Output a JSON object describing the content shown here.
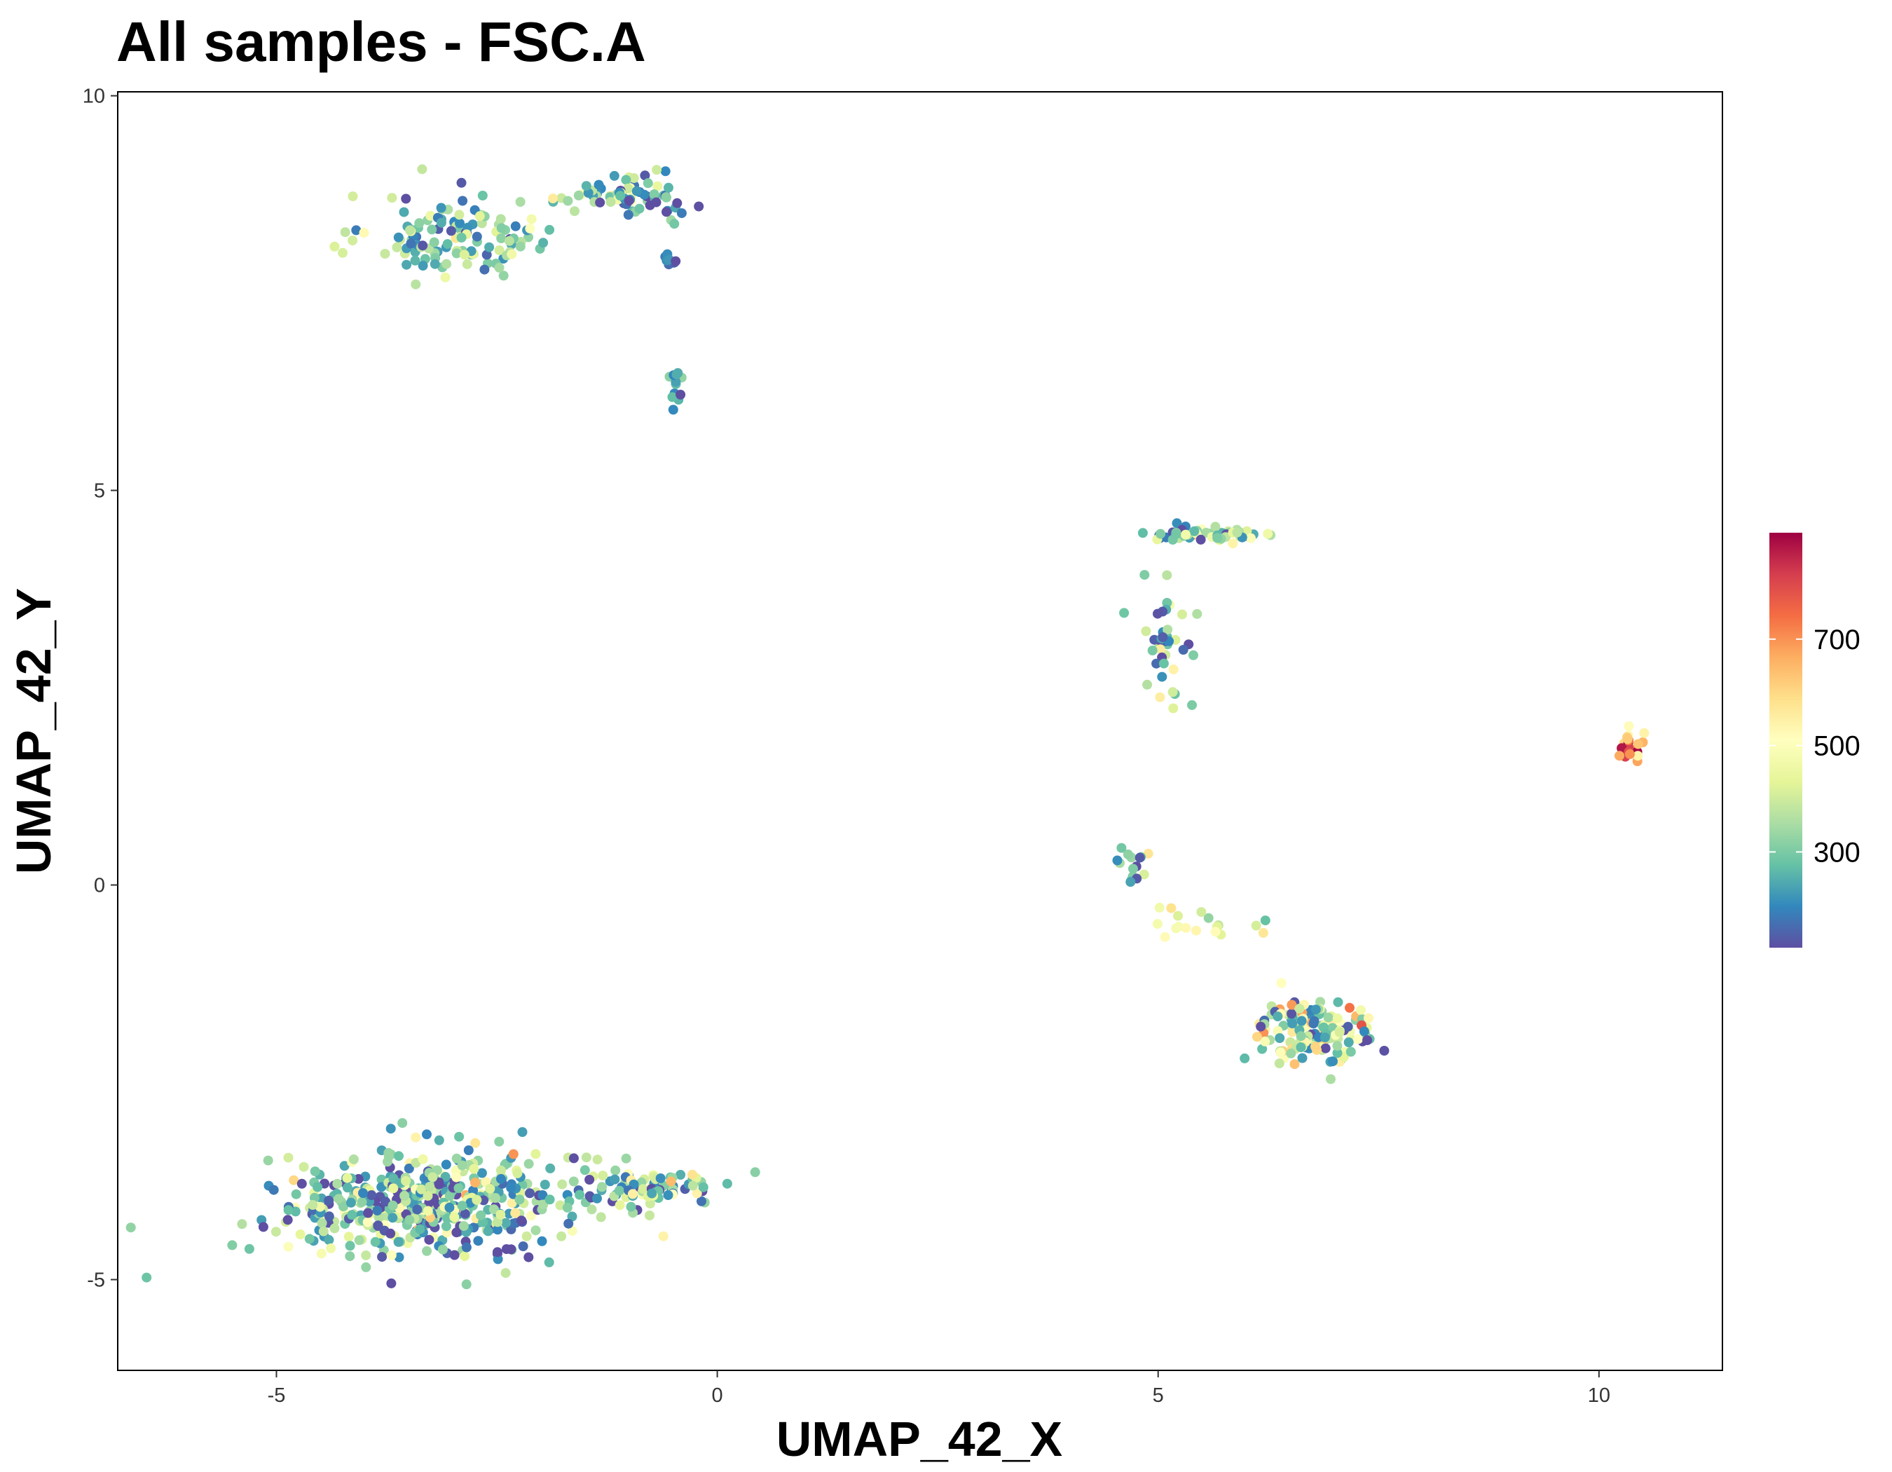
{
  "title": "All samples - FSC.A",
  "chart_data": {
    "type": "scatter",
    "title": "All samples - FSC.A",
    "xlabel": "UMAP_42_X",
    "ylabel": "UMAP_42_Y",
    "xlim": [
      -6.8,
      11.4
    ],
    "ylim": [
      -6.15,
      10.05
    ],
    "x_ticks": [
      -5,
      0,
      5,
      10
    ],
    "y_ticks": [
      -5,
      0,
      5,
      10
    ],
    "x_tick_labels": [
      "-5",
      "0",
      "5",
      "10"
    ],
    "y_tick_labels": [
      "-5",
      "0",
      "5",
      "10"
    ],
    "grid": false,
    "color_variable": "FSC.A",
    "colorbar": {
      "palette": "Spectral (reversed)",
      "colors": [
        "#5E4FA2",
        "#3288BD",
        "#66C2A5",
        "#ABDDA4",
        "#E6F598",
        "#FFFFBF",
        "#FEE08B",
        "#FDAE61",
        "#F46D43",
        "#D53E4F",
        "#9E0142"
      ],
      "range": [
        120,
        900
      ],
      "ticks": [
        300,
        500,
        700
      ],
      "tick_labels": [
        "300",
        "500",
        "700"
      ],
      "position": "right"
    },
    "clusters": [
      {
        "id": "top-left",
        "center": [
          -2.9,
          8.2
        ],
        "spread": [
          0.85,
          0.45
        ],
        "n": 130,
        "value_mean": 300,
        "value_sd": 110
      },
      {
        "id": "top-middle",
        "center": [
          -1.0,
          8.75
        ],
        "spread": [
          0.6,
          0.25
        ],
        "n": 75,
        "value_mean": 280,
        "value_sd": 110
      },
      {
        "id": "top-middle-tail",
        "center": [
          -0.55,
          7.9
        ],
        "spread": [
          0.08,
          0.2
        ],
        "n": 8,
        "value_mean": 200,
        "value_sd": 60
      },
      {
        "id": "small-streak",
        "center": [
          -0.45,
          6.3
        ],
        "spread": [
          0.1,
          0.25
        ],
        "n": 12,
        "value_mean": 250,
        "value_sd": 90
      },
      {
        "id": "top-right-bar",
        "center": [
          5.6,
          4.45
        ],
        "spread": [
          0.6,
          0.08
        ],
        "n": 55,
        "value_mean": 320,
        "value_sd": 140
      },
      {
        "id": "right-diagonal",
        "center": [
          5.1,
          3.0
        ],
        "spread": [
          0.3,
          0.7
        ],
        "n": 40,
        "value_mean": 300,
        "value_sd": 140
      },
      {
        "id": "right-lower-start",
        "center": [
          4.75,
          0.2
        ],
        "spread": [
          0.15,
          0.25
        ],
        "n": 15,
        "value_mean": 330,
        "value_sd": 140
      },
      {
        "id": "right-lower-streak",
        "center": [
          5.4,
          -0.5
        ],
        "spread": [
          0.45,
          0.2
        ],
        "n": 18,
        "value_mean": 470,
        "value_sd": 90
      },
      {
        "id": "bottom-right-blob",
        "center": [
          6.8,
          -1.85
        ],
        "spread": [
          0.55,
          0.35
        ],
        "n": 150,
        "value_mean": 360,
        "value_sd": 150
      },
      {
        "id": "far-right-crescent",
        "center": [
          10.35,
          1.8
        ],
        "spread": [
          0.12,
          0.2
        ],
        "n": 28,
        "value_mean": 720,
        "value_sd": 200
      },
      {
        "id": "bottom-left-main",
        "center": [
          -3.3,
          -4.05
        ],
        "spread": [
          1.35,
          0.55
        ],
        "n": 520,
        "value_mean": 300,
        "value_sd": 130
      },
      {
        "id": "bottom-left-tail",
        "center": [
          -0.8,
          -3.85
        ],
        "spread": [
          0.65,
          0.25
        ],
        "n": 90,
        "value_mean": 340,
        "value_sd": 130
      }
    ]
  }
}
